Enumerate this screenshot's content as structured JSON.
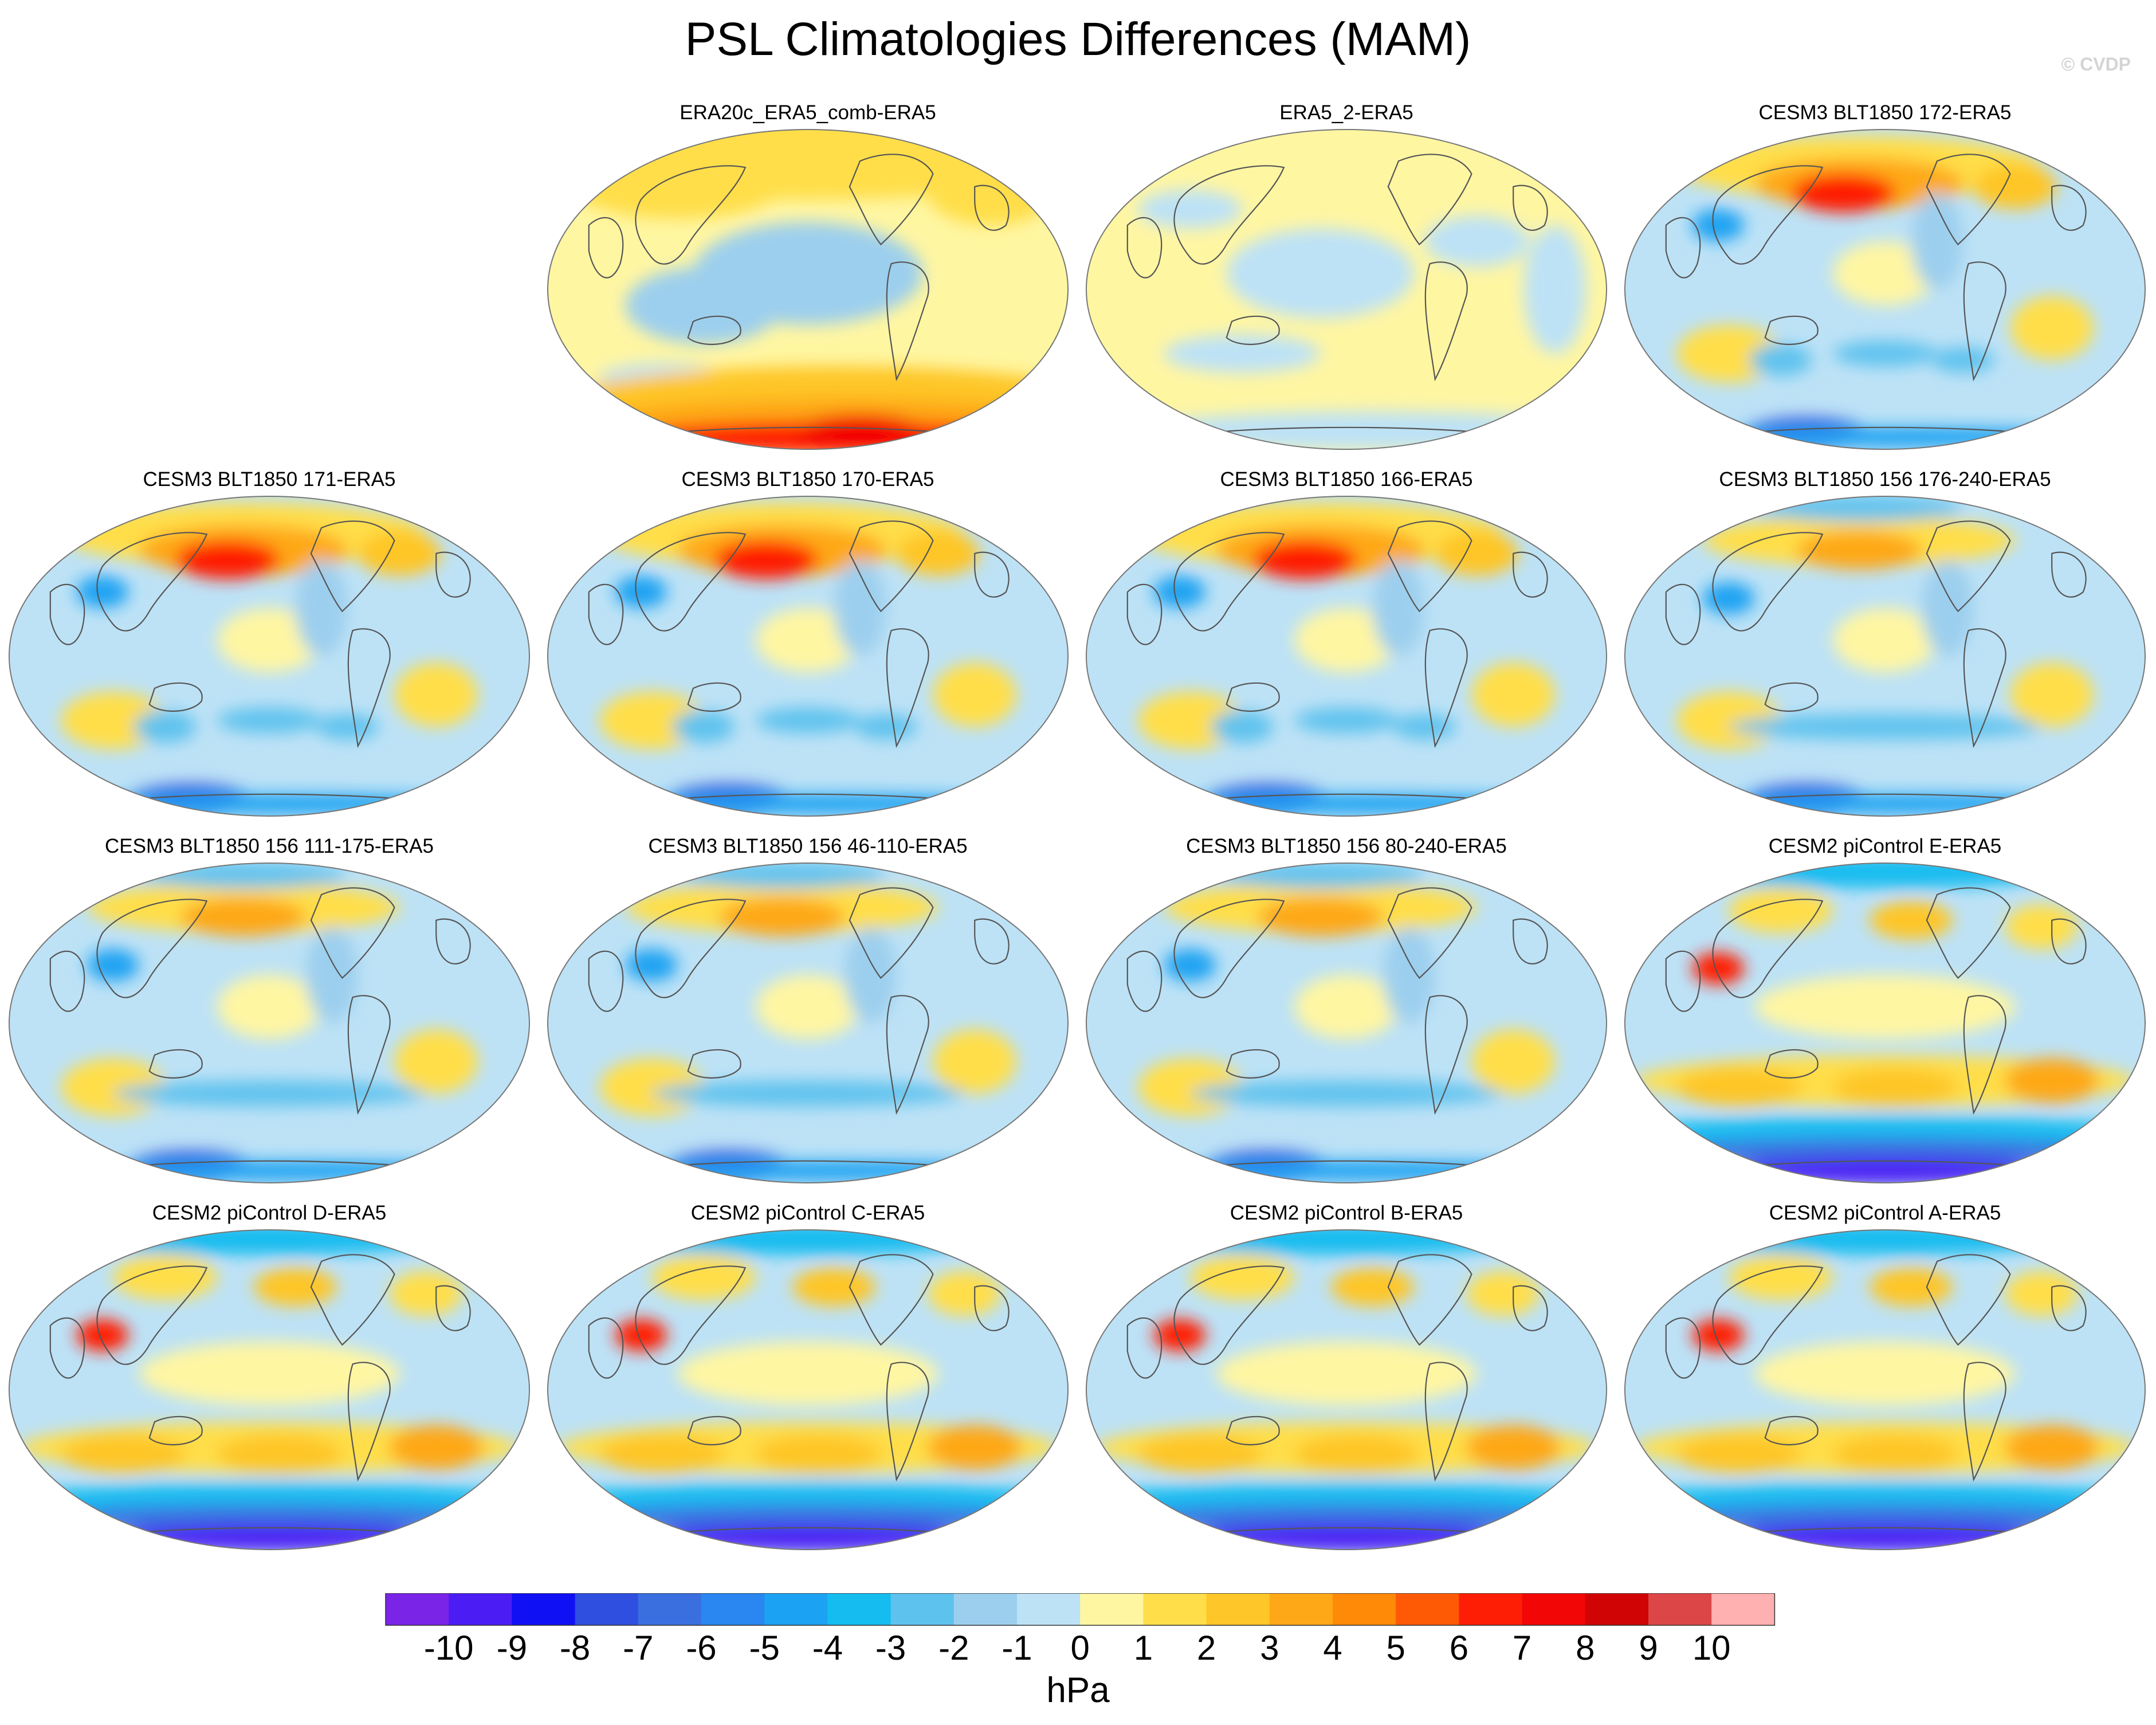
{
  "title": "PSL Climatologies Differences (MAM)",
  "watermark": "© CVDP",
  "colorbar": {
    "unit": "hPa",
    "tick_labels": [
      "-10",
      "-9",
      "-8",
      "-7",
      "-6",
      "-5",
      "-4",
      "-3",
      "-2",
      "-1",
      "0",
      "1",
      "2",
      "3",
      "4",
      "5",
      "6",
      "7",
      "8",
      "9",
      "10"
    ],
    "colors": [
      "#7a24e8",
      "#4c1cf4",
      "#1010f5",
      "#2f4fe0",
      "#3a6fe0",
      "#2a86f0",
      "#1ca2f2",
      "#14bcf0",
      "#5ec2ee",
      "#9ccfee",
      "#bde2f6",
      "#fff6a2",
      "#ffde4a",
      "#fec628",
      "#fea818",
      "#fe8a08",
      "#fe5a06",
      "#fe1e06",
      "#f20606",
      "#d00404",
      "#dc4646",
      "#ffb0b0"
    ]
  },
  "panels": [
    {
      "title": "ERA20c_ERA5_comb-ERA5",
      "scheme": "era20c"
    },
    {
      "title": "ERA5_2-ERA5",
      "scheme": "era5"
    },
    {
      "title": "CESM3 BLT1850 172-ERA5",
      "scheme": "cesm3"
    },
    {
      "title": "CESM3 BLT1850 171-ERA5",
      "scheme": "cesm3"
    },
    {
      "title": "CESM3 BLT1850 170-ERA5",
      "scheme": "cesm3"
    },
    {
      "title": "CESM3 BLT1850 166-ERA5",
      "scheme": "cesm3"
    },
    {
      "title": "CESM3 BLT1850 156 176-240-ERA5",
      "scheme": "cesm3b"
    },
    {
      "title": "CESM3 BLT1850 156 111-175-ERA5",
      "scheme": "cesm3b"
    },
    {
      "title": "CESM3 BLT1850 156 46-110-ERA5",
      "scheme": "cesm3b"
    },
    {
      "title": "CESM3 BLT1850 156 80-240-ERA5",
      "scheme": "cesm3b"
    },
    {
      "title": "CESM2 piControl E-ERA5",
      "scheme": "cesm2"
    },
    {
      "title": "CESM2 piControl D-ERA5",
      "scheme": "cesm2"
    },
    {
      "title": "CESM2 piControl C-ERA5",
      "scheme": "cesm2"
    },
    {
      "title": "CESM2 piControl B-ERA5",
      "scheme": "cesm2"
    },
    {
      "title": "CESM2 piControl A-ERA5",
      "scheme": "cesm2"
    }
  ]
}
